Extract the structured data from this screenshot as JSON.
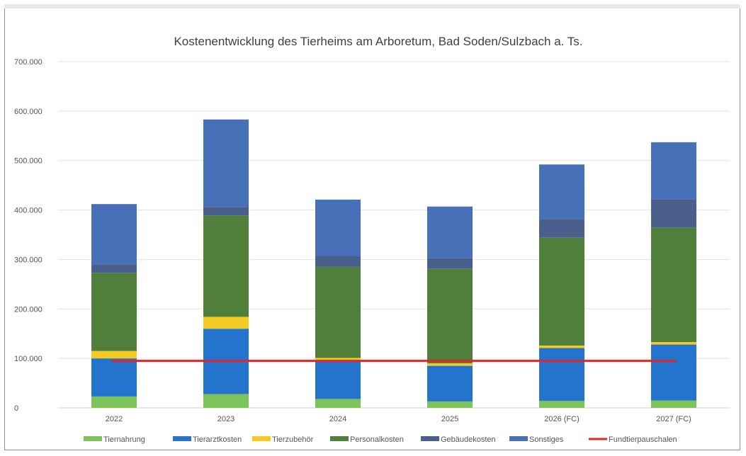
{
  "chart_data": {
    "type": "bar",
    "stacked": true,
    "title": "Kostenentwicklung des Tierheims am Arboretum, Bad Soden/Sulzbach a. Ts.",
    "xlabel": "",
    "ylabel": "",
    "ylim": [
      0,
      700000
    ],
    "yticks": [
      0,
      100000,
      200000,
      300000,
      400000,
      500000,
      600000,
      700000
    ],
    "ytick_labels": [
      "0",
      "100.000",
      "200.000",
      "300.000",
      "400.000",
      "500.000",
      "600.000",
      "700.000"
    ],
    "grid": true,
    "legend_position": "bottom",
    "categories": [
      "2022",
      "2023",
      "2024",
      "2025",
      "2026 (FC)",
      "2027 (FC)"
    ],
    "series": [
      {
        "name": "Tiernahrung",
        "color": "#7cc35a",
        "values": [
          23000,
          28000,
          18000,
          13000,
          14000,
          15000
        ]
      },
      {
        "name": "Tierarztkosten",
        "color": "#2473cc",
        "values": [
          77000,
          132000,
          78000,
          72000,
          107000,
          113000
        ]
      },
      {
        "name": "Tierzubehör",
        "color": "#f4cb22",
        "values": [
          15000,
          24000,
          5000,
          5000,
          5000,
          5000
        ]
      },
      {
        "name": "Personalkosten",
        "color": "#4f7f3b",
        "values": [
          158000,
          205000,
          184000,
          191000,
          218000,
          231000
        ]
      },
      {
        "name": "Gebäudekosten",
        "color": "#4a5f8c",
        "values": [
          17000,
          17000,
          22000,
          22000,
          38000,
          58000
        ]
      },
      {
        "name": "Sonstiges",
        "color": "#4870b9",
        "values": [
          122000,
          177000,
          114000,
          104000,
          110000,
          115000
        ]
      }
    ],
    "line_series": [
      {
        "name": "Fundtierpauschalen",
        "color": "#e1262a",
        "values": [
          95000,
          95000,
          95000,
          95000,
          95000,
          95000
        ]
      }
    ]
  }
}
